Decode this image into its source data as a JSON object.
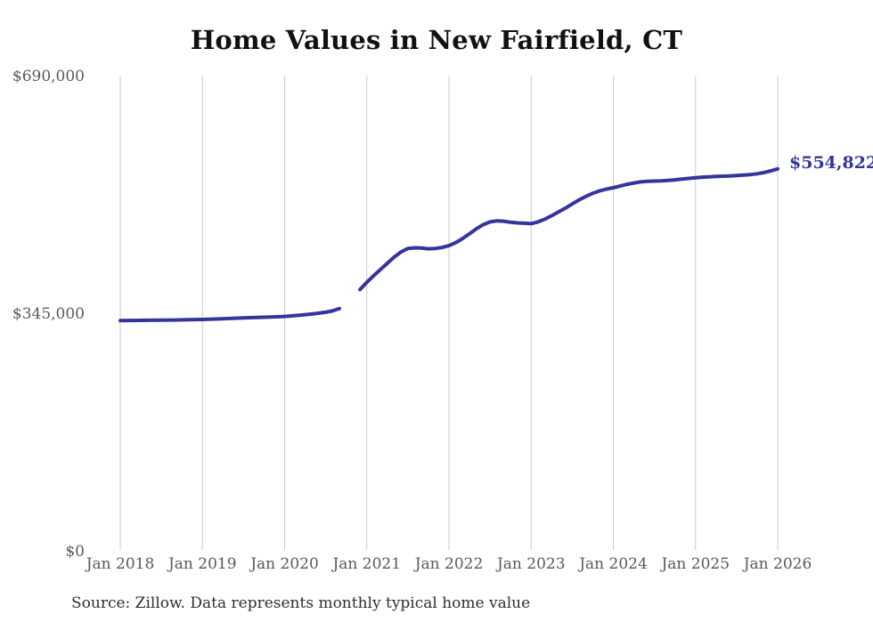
{
  "title": "Home Values in New Fairfield, CT",
  "source_note": "Source: Zillow. Data represents monthly typical home value",
  "colors": {
    "line": "#34349d",
    "grid": "#cbcbcb",
    "axis_label": "#595959",
    "title": "#111111",
    "source": "#2e2e2e"
  },
  "chart_data": {
    "type": "line",
    "title": "Home Values in New Fairfield, CT",
    "xlabel": "",
    "ylabel": "",
    "ylim": [
      0,
      690000
    ],
    "grid": "vertical-only",
    "legend": "none",
    "y_ticks": [
      {
        "label": "$690,000",
        "value": 690000
      },
      {
        "label": "$345,000",
        "value": 345000
      },
      {
        "label": "$0",
        "value": 0
      }
    ],
    "x_ticks": [
      "Jan 2018",
      "Jan 2019",
      "Jan 2020",
      "Jan 2021",
      "Jan 2022",
      "Jan 2023",
      "Jan 2024",
      "Jan 2025",
      "Jan 2026"
    ],
    "series": [
      {
        "name": "Monthly typical home value",
        "final_value": 554822,
        "final_value_label": "$554,822",
        "data_gap": [
          "2020-10",
          "2020-11"
        ],
        "segments": [
          [
            [
              "2018-01",
              335000
            ],
            [
              "2018-03",
              335200
            ],
            [
              "2018-05",
              335400
            ],
            [
              "2018-07",
              335700
            ],
            [
              "2018-09",
              335900
            ],
            [
              "2018-11",
              336200
            ],
            [
              "2019-01",
              336600
            ],
            [
              "2019-03",
              337200
            ],
            [
              "2019-05",
              338000
            ],
            [
              "2019-07",
              338800
            ],
            [
              "2019-09",
              339500
            ],
            [
              "2019-11",
              340200
            ],
            [
              "2020-01",
              341000
            ],
            [
              "2020-03",
              342500
            ],
            [
              "2020-05",
              344500
            ],
            [
              "2020-07",
              347000
            ],
            [
              "2020-08",
              349000
            ],
            [
              "2020-09",
              352500
            ]
          ],
          [
            [
              "2020-12",
              380000
            ],
            [
              "2021-01",
              390500
            ],
            [
              "2021-02",
              400000
            ],
            [
              "2021-03",
              409000
            ],
            [
              "2021-04",
              418000
            ],
            [
              "2021-05",
              427000
            ],
            [
              "2021-06",
              434500
            ],
            [
              "2021-07",
              439500
            ],
            [
              "2021-08",
              440500
            ],
            [
              "2021-09",
              440000
            ],
            [
              "2021-10",
              439000
            ],
            [
              "2021-11",
              439500
            ],
            [
              "2021-12",
              441000
            ],
            [
              "2022-01",
              443500
            ],
            [
              "2022-02",
              448000
            ],
            [
              "2022-03",
              454000
            ],
            [
              "2022-04",
              461000
            ],
            [
              "2022-05",
              468000
            ],
            [
              "2022-06",
              474000
            ],
            [
              "2022-07",
              478000
            ],
            [
              "2022-08",
              479500
            ],
            [
              "2022-09",
              479000
            ],
            [
              "2022-10",
              477500
            ],
            [
              "2022-11",
              476500
            ],
            [
              "2022-12",
              476000
            ],
            [
              "2023-01",
              475500
            ],
            [
              "2023-02",
              478000
            ],
            [
              "2023-03",
              482000
            ],
            [
              "2023-04",
              487000
            ],
            [
              "2023-05",
              492500
            ],
            [
              "2023-06",
              498000
            ],
            [
              "2023-07",
              504000
            ],
            [
              "2023-08",
              510000
            ],
            [
              "2023-09",
              515000
            ],
            [
              "2023-10",
              519500
            ],
            [
              "2023-11",
              523000
            ],
            [
              "2023-12",
              525500
            ],
            [
              "2024-01",
              527500
            ],
            [
              "2024-02",
              530000
            ],
            [
              "2024-03",
              532500
            ],
            [
              "2024-04",
              534500
            ],
            [
              "2024-05",
              536000
            ],
            [
              "2024-06",
              536800
            ],
            [
              "2024-07",
              537200
            ],
            [
              "2024-08",
              537600
            ],
            [
              "2024-09",
              538200
            ],
            [
              "2024-10",
              539000
            ],
            [
              "2024-11",
              540000
            ],
            [
              "2024-12",
              541000
            ],
            [
              "2025-01",
              542000
            ],
            [
              "2025-02",
              542800
            ],
            [
              "2025-03",
              543400
            ],
            [
              "2025-04",
              543900
            ],
            [
              "2025-05",
              544300
            ],
            [
              "2025-06",
              544700
            ],
            [
              "2025-07",
              545200
            ],
            [
              "2025-08",
              545800
            ],
            [
              "2025-09",
              546600
            ],
            [
              "2025-10",
              547800
            ],
            [
              "2025-11",
              549500
            ],
            [
              "2025-12",
              552000
            ],
            [
              "2026-01",
              554822
            ]
          ]
        ]
      }
    ]
  }
}
